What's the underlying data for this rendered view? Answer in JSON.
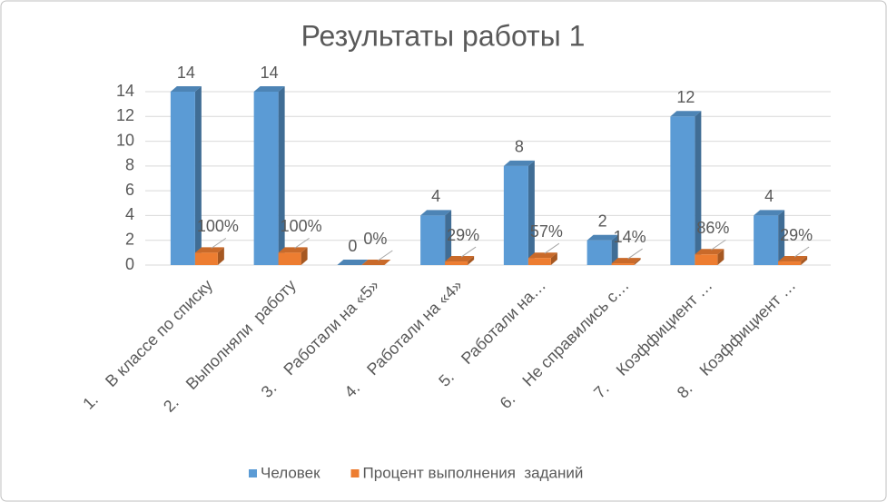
{
  "chart_data": {
    "type": "bar3d",
    "title": "Результаты  работы  1",
    "categories": [
      "1.    В классе по списку",
      "2.    Выполняли  работу",
      "3.    Работали на «5»",
      "4.    Работали на «4»",
      "5.    Работали на…",
      "6.    Не справились с…",
      "7.    Коэффициент …",
      "8.    Коэффициент …"
    ],
    "series": [
      {
        "name": "Человек",
        "color": "#5b9bd5",
        "values": [
          14,
          14,
          0,
          4,
          8,
          2,
          12,
          4
        ]
      },
      {
        "name": "Процент выполнения  заданий",
        "color": "#ed7d31",
        "values": [
          1,
          1,
          0,
          0.29,
          0.57,
          0.14,
          0.86,
          0.29
        ],
        "value_labels": [
          "100%",
          "100%",
          "0%",
          "29%",
          "57%",
          "14%",
          "86%",
          "29%"
        ]
      }
    ],
    "ylim": [
      0,
      14
    ],
    "yticks": [
      0,
      2,
      4,
      6,
      8,
      10,
      12,
      14
    ],
    "grid": true,
    "legend": "bottom"
  }
}
